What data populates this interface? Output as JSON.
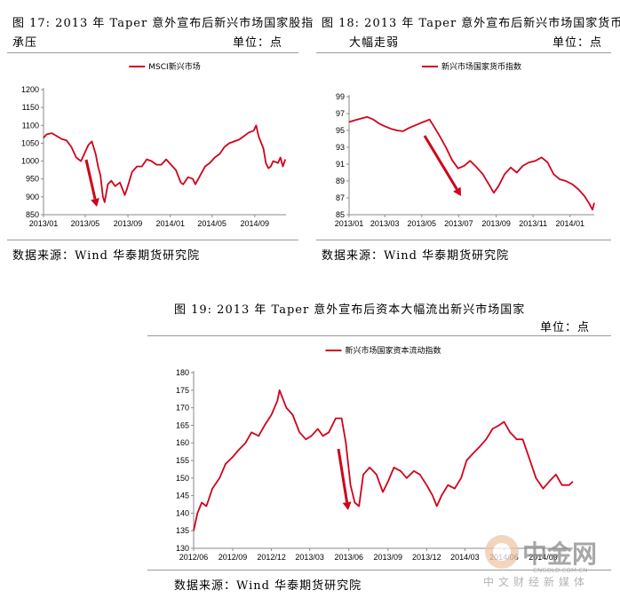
{
  "fig17": {
    "caption_line1": "图 17:    2013 年 Taper 意外宣布后新兴市场国家股指",
    "caption_line2": "承压",
    "unit": "单位：点",
    "source": "数据来源：Wind  华泰期货研究院"
  },
  "fig18": {
    "caption_line1": "图 18:    2013 年 Taper 意外宣布后新兴市场国家货币",
    "caption_line2": "大幅走弱",
    "unit": "单位：点",
    "source": "数据来源：Wind  华泰期货研究院"
  },
  "fig19": {
    "caption": "图 19:    2013 年 Taper 意外宣布后资本大幅流出新兴市场国家",
    "unit": "单位：点",
    "source": "数据来源：Wind  华泰期货研究院"
  },
  "watermark": {
    "brand": "中金网",
    "domain": "CNGOLD.COM.CN",
    "slogan": "中文财经新媒体"
  },
  "colors": {
    "series": "#d0021b",
    "arrow": "#d0021b",
    "axis": "#8a8a8a"
  },
  "chart_data": [
    {
      "id": "fig17",
      "type": "line",
      "title": "",
      "xlabel": "",
      "ylabel": "",
      "legend": "top-center",
      "grid": false,
      "ylim": [
        850,
        1200
      ],
      "yticks": [
        850,
        900,
        950,
        1000,
        1050,
        1100,
        1150,
        1200
      ],
      "xticks": [
        "2013/01",
        "2013/05",
        "2013/09",
        "2014/01",
        "2014/05",
        "2014/09"
      ],
      "x_range": [
        "2013-01-01",
        "2014-11-30"
      ],
      "series": [
        {
          "name": "MSCI新兴市场",
          "points": [
            [
              "2013-01-01",
              1065
            ],
            [
              "2013-01-10",
              1075
            ],
            [
              "2013-01-25",
              1078
            ],
            [
              "2013-02-08",
              1070
            ],
            [
              "2013-02-22",
              1062
            ],
            [
              "2013-03-08",
              1058
            ],
            [
              "2013-03-22",
              1040
            ],
            [
              "2013-04-05",
              1010
            ],
            [
              "2013-04-19",
              1000
            ],
            [
              "2013-05-03",
              1030
            ],
            [
              "2013-05-10",
              1045
            ],
            [
              "2013-05-20",
              1055
            ],
            [
              "2013-05-31",
              1020
            ],
            [
              "2013-06-07",
              985
            ],
            [
              "2013-06-14",
              960
            ],
            [
              "2013-06-21",
              900
            ],
            [
              "2013-06-26",
              885
            ],
            [
              "2013-07-05",
              935
            ],
            [
              "2013-07-15",
              945
            ],
            [
              "2013-07-26",
              930
            ],
            [
              "2013-08-09",
              940
            ],
            [
              "2013-08-23",
              905
            ],
            [
              "2013-08-30",
              925
            ],
            [
              "2013-09-13",
              970
            ],
            [
              "2013-09-27",
              985
            ],
            [
              "2013-10-11",
              985
            ],
            [
              "2013-10-25",
              1005
            ],
            [
              "2013-11-08",
              1000
            ],
            [
              "2013-11-22",
              990
            ],
            [
              "2013-12-06",
              990
            ],
            [
              "2013-12-20",
              1005
            ],
            [
              "2014-01-03",
              990
            ],
            [
              "2014-01-17",
              975
            ],
            [
              "2014-01-31",
              940
            ],
            [
              "2014-02-07",
              935
            ],
            [
              "2014-02-21",
              955
            ],
            [
              "2014-03-07",
              950
            ],
            [
              "2014-03-14",
              935
            ],
            [
              "2014-03-28",
              960
            ],
            [
              "2014-04-11",
              985
            ],
            [
              "2014-04-25",
              995
            ],
            [
              "2014-05-09",
              1010
            ],
            [
              "2014-05-23",
              1020
            ],
            [
              "2014-06-06",
              1040
            ],
            [
              "2014-06-20",
              1050
            ],
            [
              "2014-07-04",
              1055
            ],
            [
              "2014-07-18",
              1060
            ],
            [
              "2014-08-01",
              1070
            ],
            [
              "2014-08-15",
              1080
            ],
            [
              "2014-08-29",
              1085
            ],
            [
              "2014-09-05",
              1100
            ],
            [
              "2014-09-12",
              1070
            ],
            [
              "2014-09-26",
              1035
            ],
            [
              "2014-10-03",
              995
            ],
            [
              "2014-10-10",
              980
            ],
            [
              "2014-10-17",
              985
            ],
            [
              "2014-10-24",
              1000
            ],
            [
              "2014-11-07",
              995
            ],
            [
              "2014-11-14",
              1010
            ],
            [
              "2014-11-21",
              985
            ],
            [
              "2014-11-28",
              1005
            ]
          ]
        }
      ]
    },
    {
      "id": "fig18",
      "type": "line",
      "title": "",
      "xlabel": "",
      "ylabel": "",
      "legend": "top-center",
      "grid": false,
      "ylim": [
        85,
        99
      ],
      "yticks": [
        85,
        87,
        89,
        91,
        93,
        95,
        97,
        99
      ],
      "xticks": [
        "2013/01",
        "2013/03",
        "2013/05",
        "2013/07",
        "2013/09",
        "2013/11",
        "2014/01"
      ],
      "x_range": [
        "2013-01-01",
        "2014-02-10"
      ],
      "series": [
        {
          "name": "新兴市场国家货币指数",
          "points": [
            [
              "2013-01-01",
              96.0
            ],
            [
              "2013-01-10",
              96.2
            ],
            [
              "2013-01-20",
              96.4
            ],
            [
              "2013-01-31",
              96.6
            ],
            [
              "2013-02-10",
              96.3
            ],
            [
              "2013-02-20",
              95.8
            ],
            [
              "2013-03-01",
              95.5
            ],
            [
              "2013-03-11",
              95.2
            ],
            [
              "2013-03-21",
              95.0
            ],
            [
              "2013-03-31",
              94.9
            ],
            [
              "2013-04-10",
              95.3
            ],
            [
              "2013-04-20",
              95.6
            ],
            [
              "2013-04-30",
              95.9
            ],
            [
              "2013-05-07",
              96.1
            ],
            [
              "2013-05-14",
              96.3
            ],
            [
              "2013-05-21",
              95.5
            ],
            [
              "2013-05-31",
              94.3
            ],
            [
              "2013-06-10",
              93.0
            ],
            [
              "2013-06-20",
              91.5
            ],
            [
              "2013-06-30",
              90.5
            ],
            [
              "2013-07-10",
              90.8
            ],
            [
              "2013-07-20",
              91.4
            ],
            [
              "2013-07-31",
              90.6
            ],
            [
              "2013-08-10",
              89.8
            ],
            [
              "2013-08-20",
              88.6
            ],
            [
              "2013-08-28",
              87.6
            ],
            [
              "2013-09-05",
              88.4
            ],
            [
              "2013-09-15",
              89.8
            ],
            [
              "2013-09-25",
              90.6
            ],
            [
              "2013-10-05",
              90.0
            ],
            [
              "2013-10-15",
              90.8
            ],
            [
              "2013-10-25",
              91.2
            ],
            [
              "2013-11-05",
              91.4
            ],
            [
              "2013-11-15",
              91.8
            ],
            [
              "2013-11-25",
              91.2
            ],
            [
              "2013-12-05",
              89.8
            ],
            [
              "2013-12-15",
              89.2
            ],
            [
              "2013-12-25",
              89.0
            ],
            [
              "2014-01-05",
              88.6
            ],
            [
              "2014-01-15",
              88.0
            ],
            [
              "2014-01-25",
              87.2
            ],
            [
              "2014-02-01",
              86.4
            ],
            [
              "2014-02-07",
              85.6
            ],
            [
              "2014-02-10",
              86.4
            ]
          ]
        }
      ]
    },
    {
      "id": "fig19",
      "type": "line",
      "title": "",
      "xlabel": "",
      "ylabel": "",
      "legend": "top-center",
      "grid": false,
      "ylim": [
        130,
        180
      ],
      "yticks": [
        130,
        135,
        140,
        145,
        150,
        155,
        160,
        165,
        170,
        175,
        180
      ],
      "xticks": [
        "2012/06",
        "2012/09",
        "2012/12",
        "2013/03",
        "2013/06",
        "2013/09",
        "2013/12",
        "2014/03",
        "2014/06",
        "2014/09"
      ],
      "x_range": [
        "2012-06-01",
        "2014-11-10"
      ],
      "series": [
        {
          "name": "新兴市场国家资本流动指数",
          "points": [
            [
              "2012-06-01",
              135
            ],
            [
              "2012-06-10",
              140
            ],
            [
              "2012-06-20",
              143
            ],
            [
              "2012-07-01",
              142
            ],
            [
              "2012-07-15",
              147
            ],
            [
              "2012-08-01",
              150
            ],
            [
              "2012-08-15",
              154
            ],
            [
              "2012-09-01",
              156
            ],
            [
              "2012-09-15",
              158
            ],
            [
              "2012-10-01",
              160
            ],
            [
              "2012-10-15",
              163
            ],
            [
              "2012-11-01",
              162
            ],
            [
              "2012-11-15",
              165
            ],
            [
              "2012-12-01",
              168
            ],
            [
              "2012-12-15",
              172
            ],
            [
              "2012-12-20",
              175
            ],
            [
              "2013-01-05",
              170
            ],
            [
              "2013-01-20",
              168
            ],
            [
              "2013-02-05",
              163
            ],
            [
              "2013-02-20",
              161
            ],
            [
              "2013-03-05",
              162
            ],
            [
              "2013-03-20",
              164
            ],
            [
              "2013-04-01",
              162
            ],
            [
              "2013-04-15",
              163
            ],
            [
              "2013-05-01",
              167
            ],
            [
              "2013-05-15",
              167
            ],
            [
              "2013-05-25",
              160
            ],
            [
              "2013-06-05",
              148
            ],
            [
              "2013-06-15",
              143
            ],
            [
              "2013-06-25",
              142
            ],
            [
              "2013-07-05",
              151
            ],
            [
              "2013-07-20",
              153
            ],
            [
              "2013-08-05",
              151
            ],
            [
              "2013-08-20",
              146
            ],
            [
              "2013-09-01",
              149
            ],
            [
              "2013-09-15",
              153
            ],
            [
              "2013-10-01",
              152
            ],
            [
              "2013-10-15",
              150
            ],
            [
              "2013-11-01",
              152
            ],
            [
              "2013-11-15",
              151
            ],
            [
              "2013-12-01",
              148
            ],
            [
              "2013-12-15",
              145
            ],
            [
              "2013-12-25",
              142
            ],
            [
              "2014-01-05",
              145
            ],
            [
              "2014-01-20",
              148
            ],
            [
              "2014-02-05",
              147
            ],
            [
              "2014-02-20",
              150
            ],
            [
              "2014-03-05",
              155
            ],
            [
              "2014-03-20",
              157
            ],
            [
              "2014-04-05",
              159
            ],
            [
              "2014-04-20",
              161
            ],
            [
              "2014-05-05",
              164
            ],
            [
              "2014-05-20",
              165
            ],
            [
              "2014-06-01",
              166
            ],
            [
              "2014-06-15",
              163
            ],
            [
              "2014-07-01",
              161
            ],
            [
              "2014-07-15",
              161
            ],
            [
              "2014-08-01",
              155
            ],
            [
              "2014-08-15",
              150
            ],
            [
              "2014-09-01",
              147
            ],
            [
              "2014-09-15",
              149
            ],
            [
              "2014-10-01",
              151
            ],
            [
              "2014-10-15",
              148
            ],
            [
              "2014-11-01",
              148
            ],
            [
              "2014-11-10",
              149
            ]
          ]
        }
      ]
    }
  ]
}
